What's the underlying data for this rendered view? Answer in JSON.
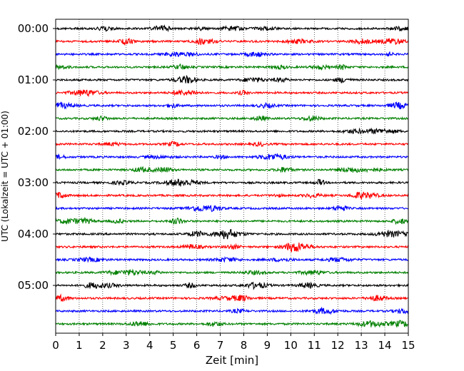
{
  "chart_data": {
    "type": "line",
    "title": "",
    "xlabel": "Zeit  [min]",
    "ylabel": "UTC (Lokalzeit = UTC + 01:00)",
    "xlim": [
      0,
      15
    ],
    "x_ticks": [
      "0",
      "1",
      "2",
      "3",
      "4",
      "5",
      "6",
      "7",
      "8",
      "9",
      "10",
      "11",
      "12",
      "13",
      "14",
      "15"
    ],
    "y_ticks": [
      "00:00",
      "01:00",
      "02:00",
      "03:00",
      "04:00",
      "05:00"
    ],
    "grid": "vertical dotted lines at each minute",
    "rows_per_hour": 4,
    "row_interval_min": 15,
    "trace_count": 24,
    "trace_start": "00:00",
    "trace_end": "05:45",
    "trace_colors": [
      "#000000",
      "#ff0000",
      "#0000ff",
      "#008000"
    ],
    "series": [
      {
        "start": "00:00",
        "color": "#000000"
      },
      {
        "start": "00:15",
        "color": "#ff0000"
      },
      {
        "start": "00:30",
        "color": "#0000ff"
      },
      {
        "start": "00:45",
        "color": "#008000"
      },
      {
        "start": "01:00",
        "color": "#000000"
      },
      {
        "start": "01:15",
        "color": "#ff0000"
      },
      {
        "start": "01:30",
        "color": "#0000ff"
      },
      {
        "start": "01:45",
        "color": "#008000"
      },
      {
        "start": "02:00",
        "color": "#000000"
      },
      {
        "start": "02:15",
        "color": "#ff0000"
      },
      {
        "start": "02:30",
        "color": "#0000ff"
      },
      {
        "start": "02:45",
        "color": "#008000"
      },
      {
        "start": "03:00",
        "color": "#000000"
      },
      {
        "start": "03:15",
        "color": "#ff0000"
      },
      {
        "start": "03:30",
        "color": "#0000ff"
      },
      {
        "start": "03:45",
        "color": "#008000"
      },
      {
        "start": "04:00",
        "color": "#000000"
      },
      {
        "start": "04:15",
        "color": "#ff0000"
      },
      {
        "start": "04:30",
        "color": "#0000ff"
      },
      {
        "start": "04:45",
        "color": "#008000"
      },
      {
        "start": "05:00",
        "color": "#000000"
      },
      {
        "start": "05:15",
        "color": "#ff0000"
      },
      {
        "start": "05:30",
        "color": "#0000ff"
      },
      {
        "start": "05:45",
        "color": "#008000"
      }
    ]
  }
}
